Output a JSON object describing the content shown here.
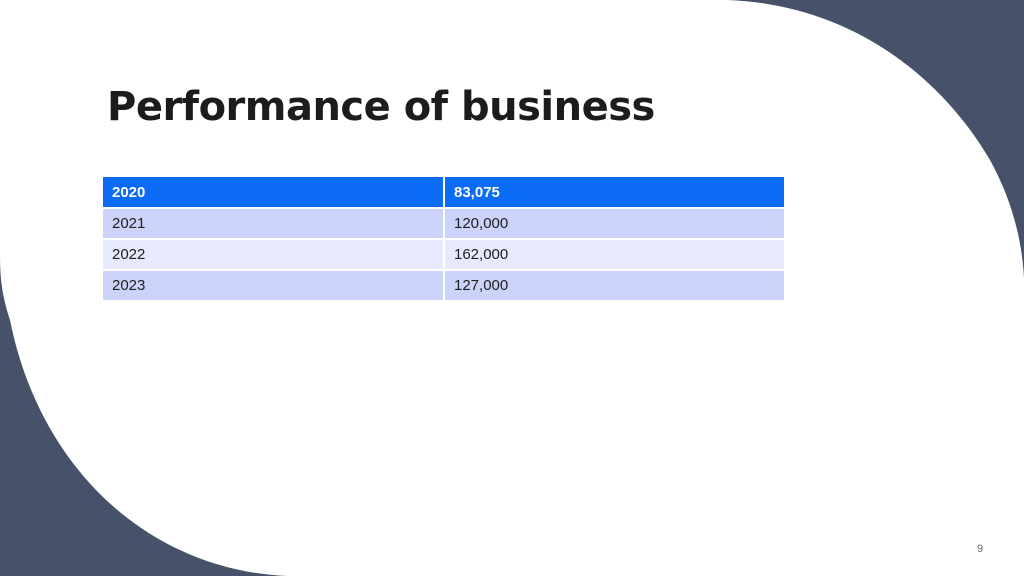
{
  "slide": {
    "title": "Performance of business",
    "page_number": "9"
  },
  "colors": {
    "background": "#ffffff",
    "accent_shape": "#465269",
    "table_header": "#0b6bf5",
    "table_row_band_1": "#ccd3fb",
    "table_row_band_2": "#e7eafd"
  },
  "table": {
    "rows": [
      {
        "year": "2020",
        "value": "83,075"
      },
      {
        "year": "2021",
        "value": "120,000"
      },
      {
        "year": "2022",
        "value": "162,000"
      },
      {
        "year": "2023",
        "value": "127,000"
      }
    ]
  }
}
